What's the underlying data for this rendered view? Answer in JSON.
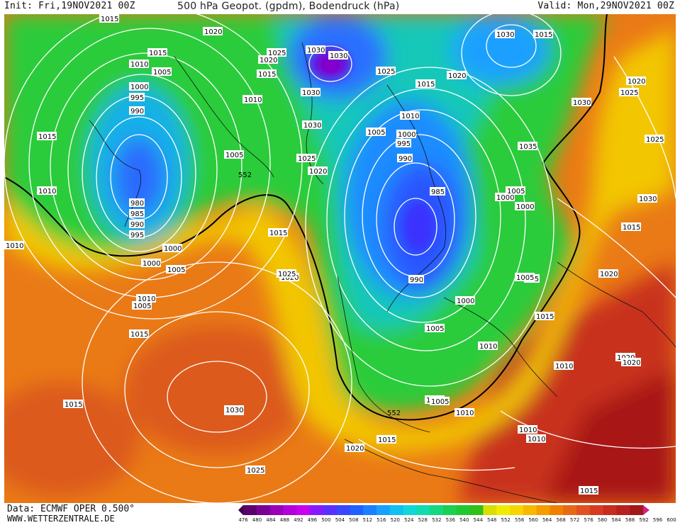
{
  "header": {
    "init": "Init: Fri,19NOV2021 00Z",
    "title": "500 hPa Geopot. (gpdm), Bodendruck (hPa)",
    "valid": "Valid: Mon,29NOV2021 00Z"
  },
  "footer": {
    "data_source": "Data: ECMWF OPER 0.500°",
    "website": "WWW.WETTERZENTRALE.DE"
  },
  "legend": {
    "unit": "gpdm",
    "ticks": [
      "476",
      "480",
      "484",
      "488",
      "492",
      "496",
      "500",
      "504",
      "508",
      "512",
      "516",
      "520",
      "524",
      "528",
      "532",
      "536",
      "540",
      "544",
      "548",
      "552",
      "556",
      "560",
      "564",
      "568",
      "572",
      "576",
      "580",
      "584",
      "588",
      "592",
      "596",
      "600"
    ],
    "colors": [
      "#3c0048",
      "#5c006e",
      "#7a0094",
      "#9a00b8",
      "#b400d8",
      "#c800f0",
      "#8a18ff",
      "#5a30ff",
      "#3a46ff",
      "#2060ff",
      "#1a80ff",
      "#18a0ff",
      "#10c0f0",
      "#10d8d8",
      "#10dcb0",
      "#14d880",
      "#1ad050",
      "#20c830",
      "#30c018",
      "#d8e000",
      "#f0ec00",
      "#f8d400",
      "#f8b800",
      "#f49c00",
      "#f08000",
      "#e86818",
      "#e05020",
      "#d83c20",
      "#c82c20",
      "#b82020",
      "#a01818",
      "#d0208a"
    ]
  },
  "isobar_labels": [
    "1015",
    "1020",
    "1015",
    "1010",
    "1005",
    "1000",
    "995",
    "990",
    "1015",
    "1010",
    "980",
    "985",
    "990",
    "995",
    "1000",
    "1005",
    "1010",
    "1015",
    "1030",
    "1030",
    "1020",
    "1025",
    "1015",
    "1010",
    "1005",
    "1030",
    "1030",
    "1025",
    "1020",
    "1025",
    "1020",
    "1030",
    "1015",
    "1010",
    "1005",
    "1000",
    "995",
    "990",
    "985",
    "990",
    "1000",
    "1005",
    "1010",
    "1015",
    "1020",
    "1025",
    "1030",
    "1035",
    "1025",
    "1030",
    "1015",
    "1020",
    "1015",
    "1010",
    "1020",
    "1015",
    "1010",
    "1000",
    "1005",
    "1000",
    "995",
    "1005",
    "1000",
    "1005",
    "1010",
    "1015",
    "1020",
    "1025",
    "1030",
    "1015",
    "1025",
    "1015",
    "1020",
    "1010",
    "1015",
    "1010",
    "1020",
    "1005",
    "1030"
  ],
  "contour_label": "552"
}
